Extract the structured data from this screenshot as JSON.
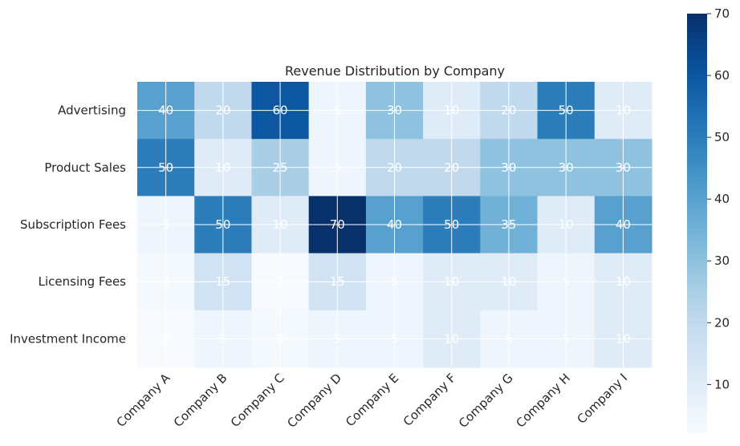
{
  "chart_data": {
    "type": "heatmap",
    "title": "Revenue Distribution by Company",
    "xlabel": "",
    "ylabel": "",
    "x_categories": [
      "Company A",
      "Company B",
      "Company C",
      "Company D",
      "Company E",
      "Company F",
      "Company G",
      "Company H",
      "Company I"
    ],
    "y_categories": [
      "Advertising",
      "Product Sales",
      "Subscription Fees",
      "Licensing Fees",
      "Investment Income"
    ],
    "values": [
      [
        40,
        20,
        60,
        5,
        30,
        10,
        20,
        50,
        10
      ],
      [
        50,
        10,
        25,
        5,
        20,
        20,
        30,
        30,
        30
      ],
      [
        5,
        50,
        10,
        70,
        40,
        50,
        35,
        10,
        40
      ],
      [
        3,
        15,
        2,
        15,
        5,
        10,
        10,
        5,
        10
      ],
      [
        2,
        5,
        3,
        5,
        5,
        10,
        5,
        5,
        10
      ]
    ],
    "colormap": "Blues",
    "color_range": [
      2,
      70
    ],
    "colorbar_ticks": [
      10,
      20,
      30,
      40,
      50,
      60,
      70
    ],
    "grid": true,
    "grid_color": "#ffffff"
  }
}
